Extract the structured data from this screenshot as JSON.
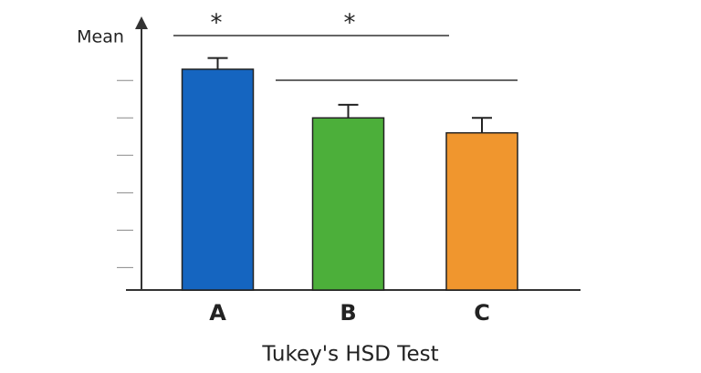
{
  "chart_data": {
    "type": "bar",
    "title": "Tukey's HSD Test",
    "y_label": "Mean",
    "categories": [
      "A",
      "B",
      "C"
    ],
    "values": [
      6.3,
      5.0,
      4.6
    ],
    "errors": [
      0.3,
      0.35,
      0.4
    ],
    "colors": [
      "#1565c0",
      "#4caf3a",
      "#f0962e"
    ],
    "ylim": [
      0.4,
      7.2
    ],
    "yticks": [
      1,
      2,
      3,
      4,
      5,
      6
    ],
    "ytick_labels": false,
    "annotations": [
      "*",
      "*"
    ]
  }
}
